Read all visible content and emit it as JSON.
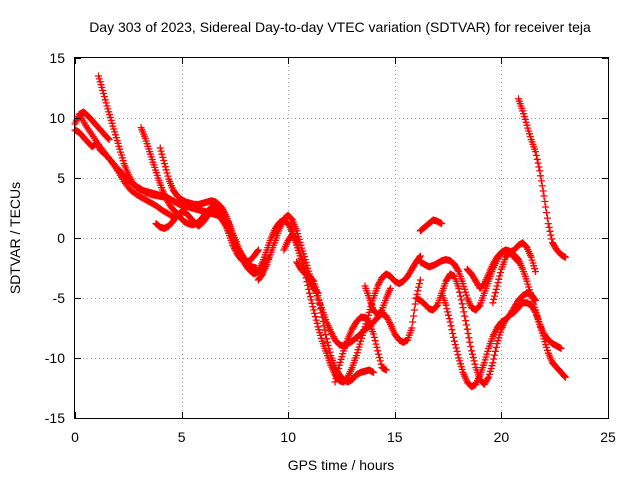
{
  "chart_data": {
    "type": "scatter",
    "title": "Day 303 of 2023, Sidereal Day-to-day VTEC variation (SDTVAR) for receiver teja",
    "xlabel": "GPS time / hours",
    "ylabel": "SDTVAR / TECUs",
    "xlim": [
      0,
      25
    ],
    "ylim": [
      -15,
      15
    ],
    "xticks": [
      "0",
      "5",
      "10",
      "15",
      "20",
      "25"
    ],
    "yticks": [
      "-15",
      "-10",
      "-5",
      "0",
      "5",
      "10",
      "15"
    ],
    "grid": true,
    "marker": "plus",
    "color": "#ff0000",
    "series": [
      {
        "x": [
          0.0,
          0.2,
          0.4,
          0.6,
          0.8,
          1.0,
          1.2,
          1.4,
          1.6
        ],
        "y": [
          9.5,
          10.3,
          10.5,
          10.2,
          9.8,
          9.4,
          9.0,
          8.6,
          8.2
        ]
      },
      {
        "x": [
          0.0,
          0.2,
          0.4,
          0.6,
          0.8,
          1.0,
          1.2,
          1.5,
          1.8,
          2.1,
          2.4,
          2.7,
          3.0,
          3.3,
          3.6,
          3.9,
          4.2
        ],
        "y": [
          9.0,
          8.8,
          8.4,
          8.0,
          7.6,
          7.9,
          7.3,
          6.8,
          6.2,
          5.6,
          5.0,
          4.5,
          4.2,
          3.8,
          3.6,
          3.5,
          3.4
        ]
      },
      {
        "x": [
          0.2,
          0.5,
          0.8,
          1.1,
          1.4,
          1.7,
          2.0,
          2.3,
          2.6,
          2.9,
          3.2,
          3.5,
          3.8,
          4.1,
          4.4,
          4.7
        ],
        "y": [
          10.3,
          9.4,
          8.6,
          7.8,
          7.1,
          6.4,
          5.6,
          4.7,
          4.0,
          3.6,
          3.3,
          3.0,
          2.7,
          2.3,
          2.0,
          1.6
        ]
      },
      {
        "x": [
          1.1,
          1.3,
          1.5,
          1.7,
          1.9,
          2.1,
          2.3,
          2.5,
          2.7,
          2.9,
          3.1,
          3.3,
          3.5,
          3.7,
          3.9,
          4.1,
          4.3,
          4.5,
          4.7,
          4.9,
          5.1,
          5.3,
          5.5,
          5.7,
          5.9,
          6.1,
          6.3,
          6.5,
          6.7,
          6.9,
          7.1,
          7.3,
          7.5,
          7.7,
          7.9,
          8.1,
          8.3,
          8.5,
          8.7,
          8.9,
          9.1
        ],
        "y": [
          13.5,
          12.3,
          11.0,
          9.8,
          8.6,
          7.4,
          6.2,
          5.3,
          4.6,
          4.2,
          4.0,
          3.9,
          3.8,
          3.7,
          3.6,
          3.5,
          3.4,
          3.2,
          3.0,
          2.8,
          2.7,
          2.6,
          2.5,
          2.4,
          2.3,
          2.2,
          2.1,
          2.0,
          1.9,
          1.5,
          1.0,
          0.4,
          -0.4,
          -1.2,
          -1.9,
          -2.5,
          -2.8,
          -2.9,
          -2.6,
          -2.0,
          -1.6
        ]
      },
      {
        "x": [
          3.1,
          3.3,
          3.5,
          3.7,
          3.9,
          4.1,
          4.3,
          4.5,
          4.7,
          4.9,
          5.1,
          5.3,
          5.5,
          5.7,
          5.9,
          6.1,
          6.3,
          6.5,
          6.7,
          6.9,
          7.1,
          7.3,
          7.5,
          7.7,
          7.9,
          8.1,
          8.3,
          8.5
        ],
        "y": [
          9.2,
          8.3,
          7.2,
          6.1,
          5.0,
          4.0,
          3.2,
          2.6,
          2.2,
          1.8,
          1.4,
          1.2,
          1.1,
          1.2,
          1.5,
          2.0,
          2.4,
          2.7,
          2.8,
          2.5,
          1.8,
          0.8,
          -0.2,
          -1.0,
          -1.6,
          -2.1,
          -2.4,
          -2.5
        ]
      },
      {
        "x": [
          4.0,
          4.2,
          4.4,
          4.6,
          4.8,
          5.0,
          5.2,
          5.4,
          5.6,
          5.8,
          6.0,
          6.2,
          6.4,
          6.6,
          6.8,
          7.0,
          7.2,
          7.4,
          7.6,
          7.8,
          8.0,
          8.2,
          8.4,
          8.6,
          8.8,
          9.0,
          9.2,
          9.4,
          9.6,
          9.8,
          10.0,
          10.2,
          10.4,
          10.6,
          10.8,
          11.0,
          11.2,
          11.4
        ],
        "y": [
          7.5,
          6.2,
          4.9,
          4.0,
          3.5,
          3.2,
          3.0,
          2.9,
          2.8,
          2.8,
          2.9,
          3.0,
          3.1,
          3.0,
          2.7,
          2.1,
          1.3,
          0.4,
          -0.5,
          -1.4,
          -2.2,
          -2.7,
          -3.0,
          -2.8,
          -2.0,
          -1.0,
          0.0,
          0.8,
          1.3,
          1.5,
          1.2,
          0.4,
          -0.6,
          -1.7,
          -2.8,
          -3.6,
          -4.2,
          -4.6
        ]
      },
      {
        "x": [
          3.8,
          4.0,
          4.2,
          4.4,
          4.6,
          4.8,
          5.0,
          5.2,
          5.4,
          5.6,
          5.8,
          6.0,
          6.2,
          6.4,
          6.6,
          6.8,
          7.0,
          7.2,
          7.4,
          7.6,
          7.8,
          8.0,
          8.2,
          8.4,
          8.6
        ],
        "y": [
          1.2,
          0.9,
          0.8,
          1.0,
          1.4,
          1.9,
          2.2,
          2.1,
          1.7,
          1.3,
          1.0,
          1.3,
          1.8,
          2.3,
          2.5,
          2.2,
          1.4,
          0.4,
          -0.6,
          -1.3,
          -1.8,
          -2.0,
          -1.9,
          -1.5,
          -1.0
        ]
      },
      {
        "x": [
          8.6,
          8.8,
          9.0,
          9.2,
          9.4,
          9.6,
          9.8,
          10.0,
          10.2,
          10.4,
          10.6,
          10.8,
          11.0,
          11.2,
          11.4,
          11.6,
          11.8,
          12.0,
          12.2,
          12.4,
          12.6,
          12.8,
          13.0,
          13.2,
          13.4,
          13.6,
          13.8,
          14.0,
          14.2,
          14.4,
          14.6,
          14.8,
          15.0,
          15.2,
          15.4,
          15.6,
          15.8,
          16.0,
          16.2
        ],
        "y": [
          -3.5,
          -3.0,
          -2.2,
          -1.2,
          -0.2,
          0.8,
          1.6,
          1.9,
          1.5,
          0.6,
          -0.6,
          -1.8,
          -3.0,
          -4.0,
          -5.0,
          -6.0,
          -7.0,
          -7.8,
          -8.5,
          -8.9,
          -9.0,
          -8.8,
          -8.6,
          -8.3,
          -8.0,
          -7.6,
          -7.4,
          -7.0,
          -6.6,
          -6.3,
          -6.5,
          -7.2,
          -8.0,
          -8.5,
          -8.7,
          -8.5,
          -7.5,
          -5.0,
          -3.5
        ]
      },
      {
        "x": [
          9.8,
          10.0,
          10.2,
          10.4,
          10.6,
          10.8,
          11.0,
          11.2,
          11.4,
          11.6,
          11.8,
          12.0,
          12.2,
          12.4,
          12.6,
          12.8,
          13.0,
          13.2,
          13.4,
          13.6,
          13.8,
          14.0,
          14.2,
          14.4,
          14.6,
          14.8,
          15.0,
          15.2,
          15.4,
          15.6,
          15.8,
          16.0,
          16.2
        ],
        "y": [
          -1.0,
          -0.2,
          0.3,
          -0.3,
          -1.5,
          -3.0,
          -4.6,
          -6.0,
          -7.4,
          -8.6,
          -9.6,
          -10.6,
          -11.4,
          -11.9,
          -12.0,
          -11.6,
          -10.8,
          -9.8,
          -8.6,
          -7.4,
          -6.2,
          -5.0,
          -4.0,
          -3.3,
          -3.0,
          -3.2,
          -3.6,
          -3.8,
          -3.6,
          -3.2,
          -2.6,
          -2.0,
          -1.5
        ]
      },
      {
        "x": [
          10.4,
          10.6,
          10.8,
          11.0,
          11.2,
          11.4,
          11.6,
          11.8,
          12.0,
          12.2,
          12.4,
          12.6,
          12.8,
          13.0,
          13.2,
          13.4,
          13.6,
          13.8,
          14.0
        ],
        "y": [
          -2.0,
          -2.6,
          -3.0,
          -3.2,
          -3.6,
          -4.8,
          -6.6,
          -8.4,
          -9.8,
          -10.8,
          -11.4,
          -11.8,
          -12.0,
          -11.8,
          -11.4,
          -11.2,
          -11.1,
          -11.0,
          -11.2
        ]
      },
      {
        "x": [
          12.2,
          12.4,
          12.6,
          12.8,
          13.0,
          13.2,
          13.4,
          13.6,
          13.8,
          14.0,
          14.2,
          14.4,
          14.6
        ],
        "y": [
          -12.0,
          -10.6,
          -9.4,
          -8.4,
          -7.6,
          -7.0,
          -6.6,
          -6.6,
          -7.0,
          -8.0,
          -9.4,
          -10.8,
          -11.0
        ]
      },
      {
        "x": [
          13.6,
          13.8,
          14.0,
          14.2,
          14.4,
          14.6,
          14.8
        ],
        "y": [
          -4.0,
          -5.0,
          -6.0,
          -6.4,
          -6.0,
          -5.0,
          -4.2
        ]
      },
      {
        "x": [
          16.2,
          16.4,
          16.6,
          16.8,
          17.0,
          17.2
        ],
        "y": [
          0.6,
          0.9,
          1.2,
          1.5,
          1.4,
          1.2
        ]
      },
      {
        "x": [
          16.2,
          16.4,
          16.6,
          16.8,
          17.0,
          17.2,
          17.4,
          17.6,
          17.8,
          18.0,
          18.2,
          18.4,
          18.6,
          18.8,
          19.0,
          19.2,
          19.4,
          19.6,
          19.8,
          20.0,
          20.2,
          20.4,
          20.6,
          20.8,
          21.0,
          21.2,
          21.4,
          21.6,
          21.8,
          22.0,
          22.2,
          22.4,
          22.6,
          22.8
        ],
        "y": [
          -2.0,
          -2.2,
          -2.4,
          -2.3,
          -2.1,
          -1.9,
          -1.8,
          -1.9,
          -2.2,
          -2.8,
          -3.8,
          -5.0,
          -5.8,
          -6.0,
          -5.6,
          -4.6,
          -3.6,
          -2.6,
          -1.8,
          -1.2,
          -1.0,
          -1.1,
          -1.4,
          -1.8,
          -2.6,
          -3.6,
          -4.8,
          -6.0,
          -7.2,
          -8.0,
          -8.5,
          -8.8,
          -9.0,
          -9.2
        ]
      },
      {
        "x": [
          16.0,
          16.2,
          16.4,
          16.6,
          16.8,
          17.0,
          17.2,
          17.4,
          17.6,
          17.8,
          18.0,
          18.2,
          18.4,
          18.6,
          18.8,
          19.0,
          19.2,
          19.4,
          19.6,
          19.8,
          20.0,
          20.2,
          20.4,
          20.6,
          20.8,
          21.0,
          21.2,
          21.4,
          21.6,
          21.8,
          22.0,
          22.2,
          22.4,
          22.6,
          22.8,
          23.0
        ],
        "y": [
          -5.0,
          -5.2,
          -5.5,
          -5.9,
          -6.0,
          -5.6,
          -4.6,
          -3.6,
          -3.0,
          -3.2,
          -4.2,
          -5.8,
          -7.6,
          -9.4,
          -10.8,
          -11.8,
          -12.2,
          -11.6,
          -10.4,
          -8.8,
          -7.6,
          -6.8,
          -6.4,
          -6.2,
          -5.8,
          -5.4,
          -5.4,
          -5.6,
          -6.2,
          -7.2,
          -8.4,
          -9.6,
          -10.4,
          -10.8,
          -11.2,
          -11.6
        ]
      },
      {
        "x": [
          17.2,
          17.4,
          17.6,
          17.8,
          18.0,
          18.2,
          18.4,
          18.6,
          18.8,
          19.0,
          19.2,
          19.4,
          19.6,
          19.8,
          20.0,
          20.2,
          20.4,
          20.6,
          20.8,
          21.0,
          21.2,
          21.4,
          21.6
        ],
        "y": [
          -4.6,
          -5.6,
          -7.0,
          -8.6,
          -10.0,
          -11.2,
          -12.0,
          -12.4,
          -12.2,
          -11.4,
          -10.4,
          -9.2,
          -8.2,
          -7.5,
          -7.0,
          -6.8,
          -6.4,
          -5.8,
          -5.2,
          -4.8,
          -4.6,
          -4.7,
          -5.2
        ]
      },
      {
        "x": [
          18.4,
          18.6,
          18.8,
          19.0,
          19.2,
          19.4,
          19.6,
          19.8,
          20.0,
          20.2,
          20.4,
          20.6,
          20.8
        ],
        "y": [
          -2.6,
          -3.0,
          -3.6,
          -4.2,
          -3.8,
          -3.0,
          -2.2,
          -1.6,
          -1.2,
          -1.0,
          -1.2,
          -1.6,
          -2.0
        ]
      },
      {
        "x": [
          20.8,
          21.0,
          21.2,
          21.4,
          21.6,
          21.8,
          22.0,
          22.2,
          22.4,
          22.6,
          22.8,
          23.0
        ],
        "y": [
          11.6,
          10.6,
          9.4,
          8.2,
          7.2,
          5.6,
          3.5,
          1.2,
          -0.4,
          -1.0,
          -1.4,
          -1.6
        ]
      },
      {
        "x": [
          19.6,
          19.8,
          20.0,
          20.2,
          20.4,
          20.6,
          20.8,
          21.0,
          21.2,
          21.4,
          21.6
        ],
        "y": [
          -5.4,
          -4.0,
          -2.6,
          -1.6,
          -1.2,
          -1.0,
          -0.6,
          -0.4,
          -0.8,
          -1.6,
          -2.8
        ]
      }
    ]
  }
}
